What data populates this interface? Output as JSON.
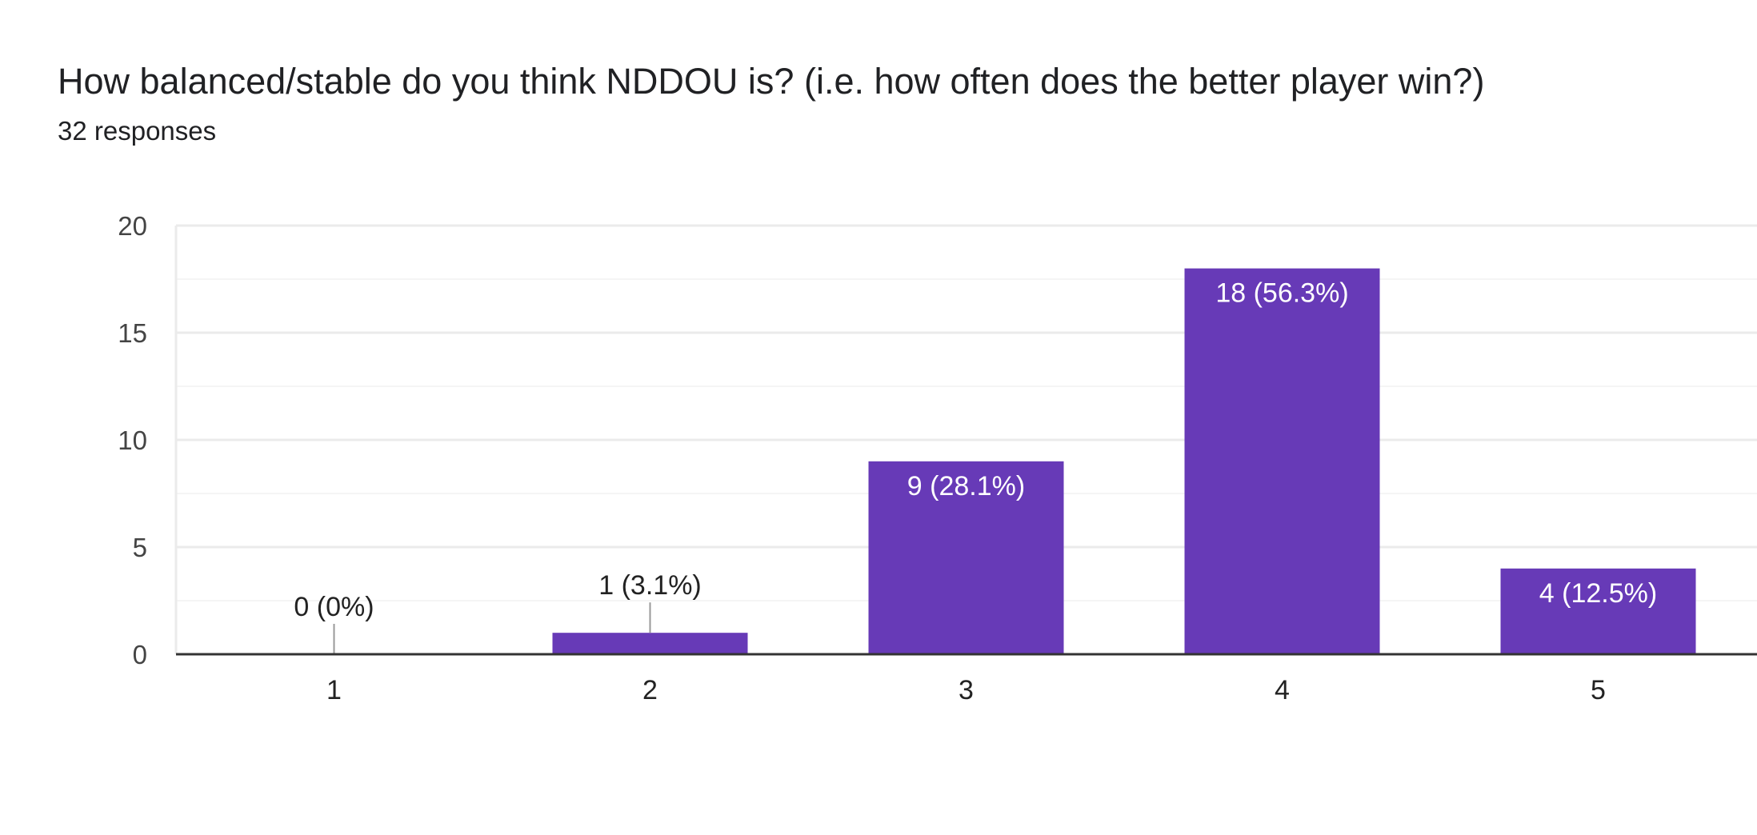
{
  "header": {
    "question": "How balanced/stable do you think NDDOU is? (i.e. how often does the better player win?)",
    "responses": "32 responses"
  },
  "colors": {
    "bar": "#673ab7",
    "grid": "#ebebeb",
    "minor_grid": "#f5f5f5",
    "axis": "#333333",
    "label_inside": "#ffffff",
    "label_outside": "#222222",
    "leader": "#999999"
  },
  "chart_data": {
    "type": "bar",
    "categories": [
      "1",
      "2",
      "3",
      "4",
      "5"
    ],
    "values": [
      0,
      1,
      9,
      18,
      4
    ],
    "data_labels": [
      "0 (0%)",
      "1 (3.1%)",
      "9 (28.1%)",
      "18 (56.3%)",
      "4 (12.5%)"
    ],
    "title": "How balanced/stable do you think NDDOU is? (i.e. how often does the better player win?)",
    "xlabel": "",
    "ylabel": "",
    "ylim": [
      0,
      20
    ],
    "yticks": [
      0,
      5,
      10,
      15,
      20
    ],
    "grid": true,
    "legend": "none"
  }
}
